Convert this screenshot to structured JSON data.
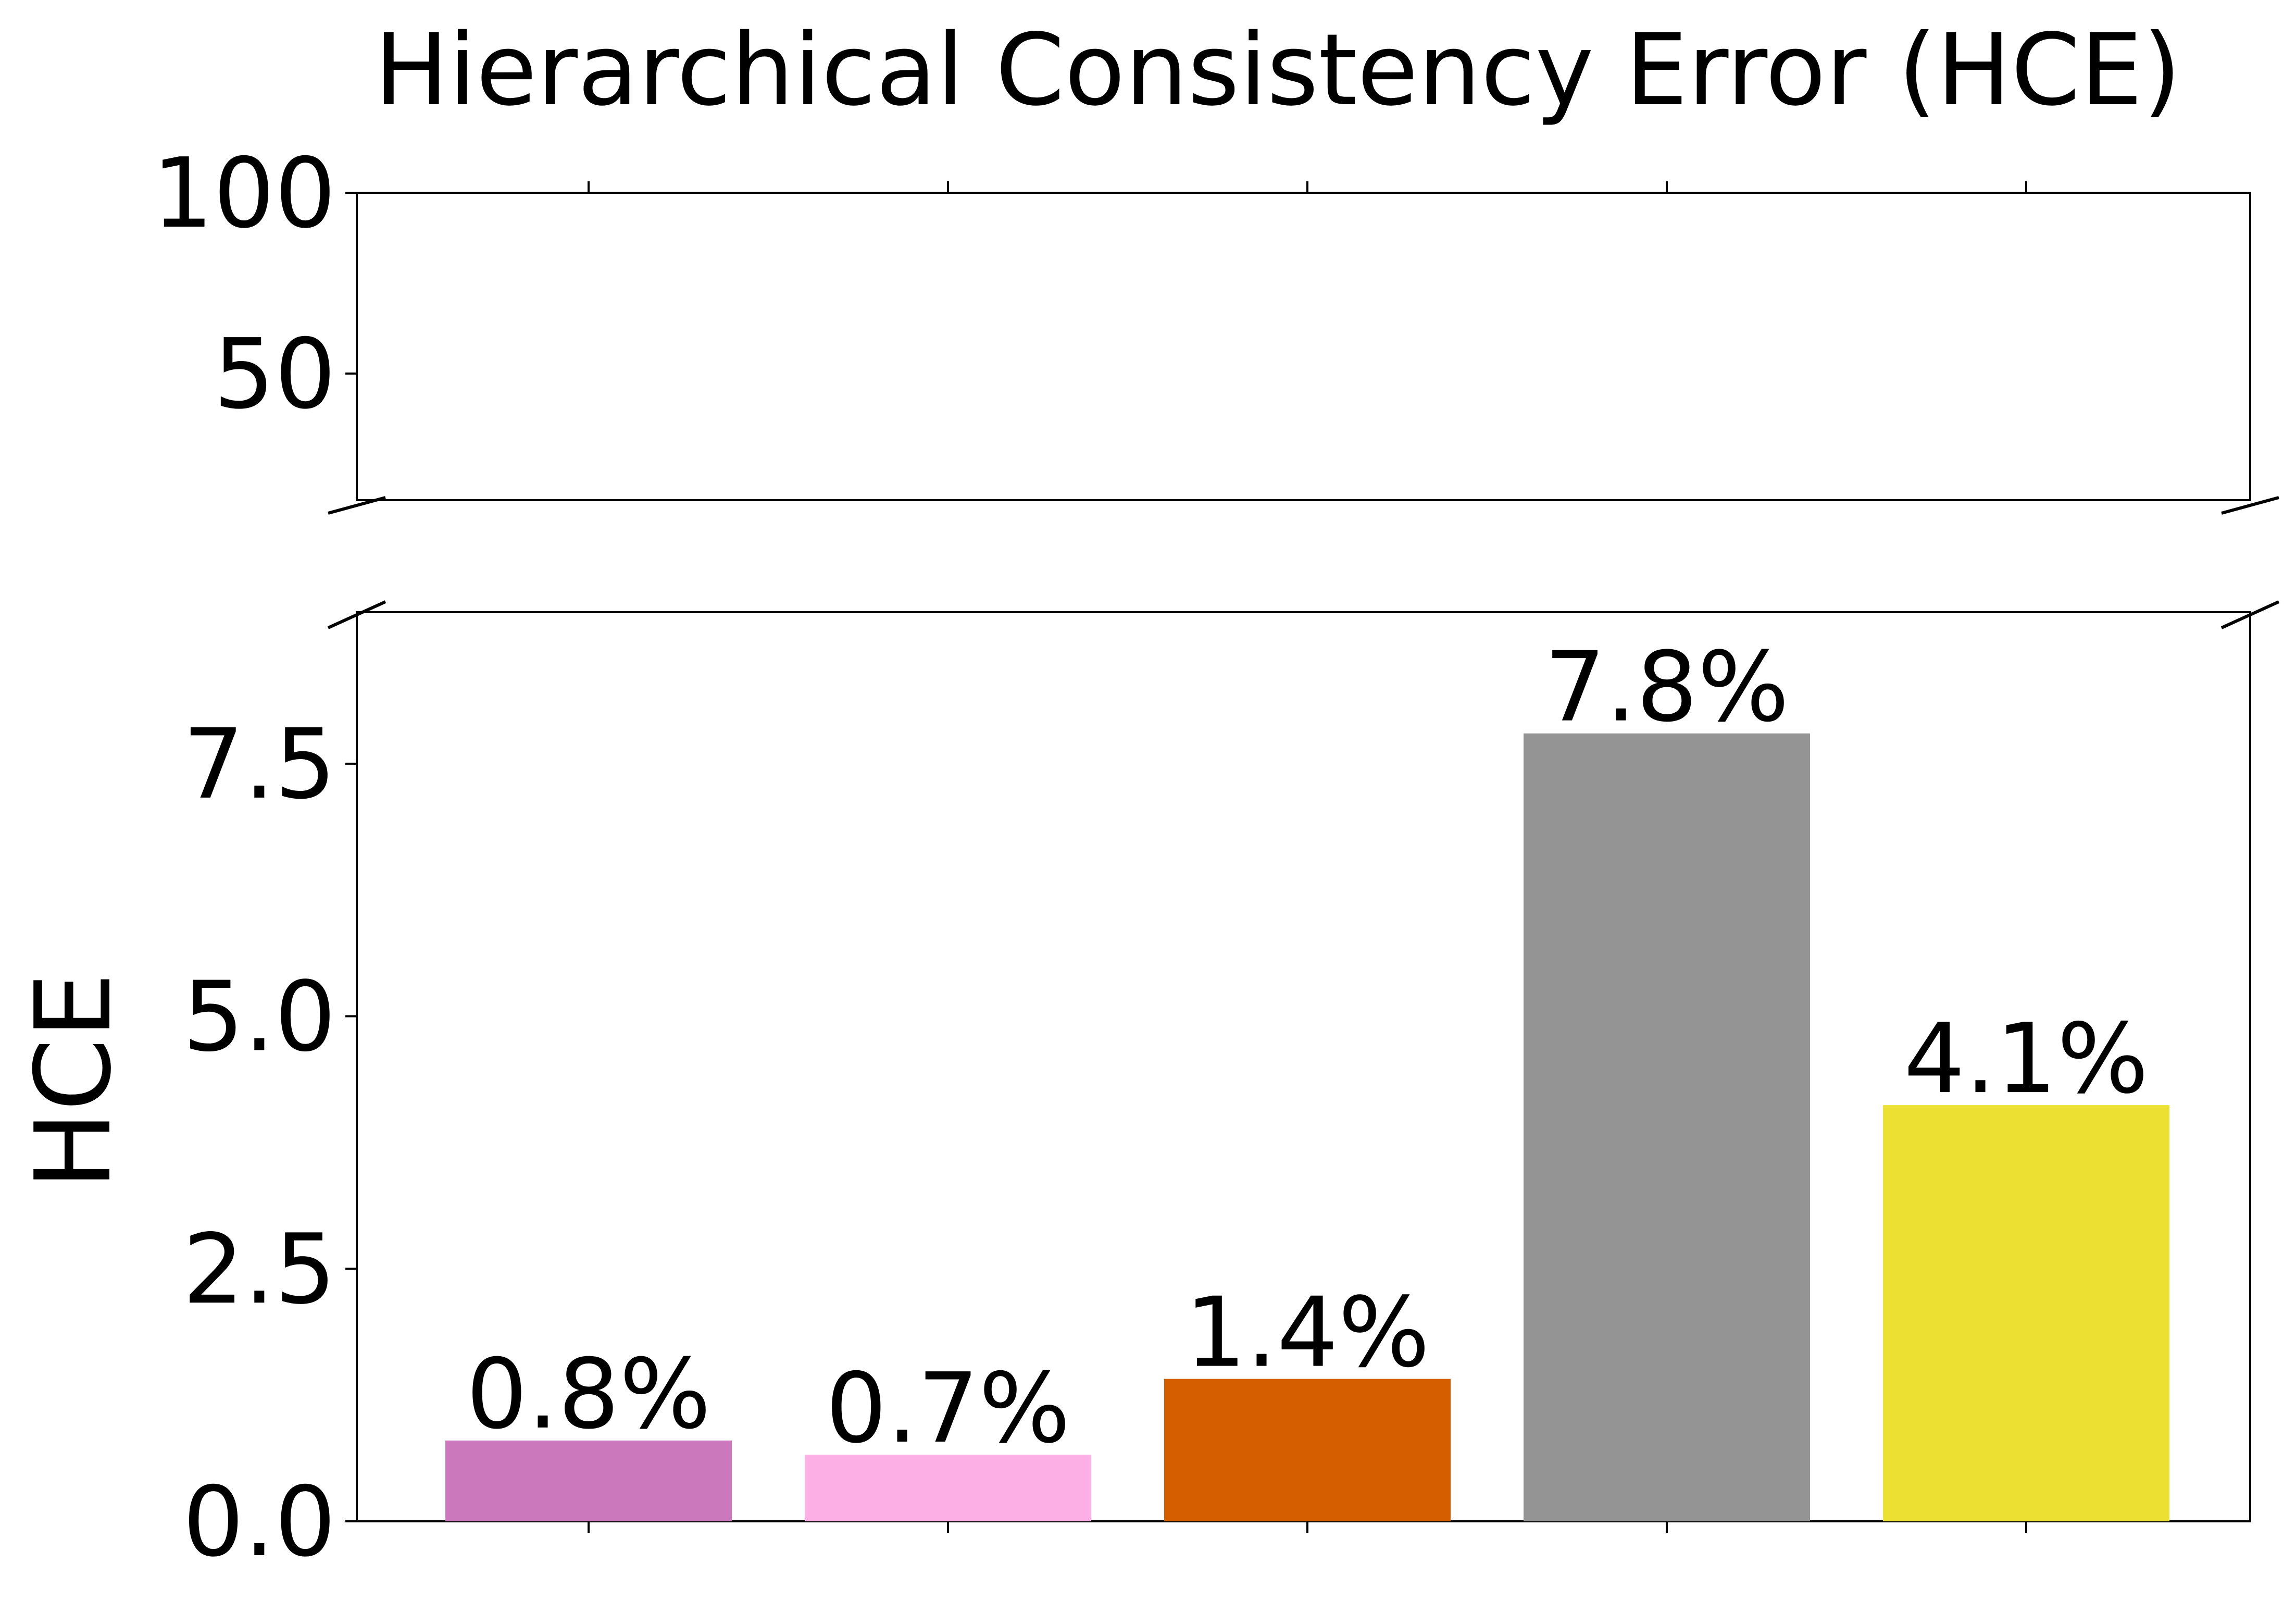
{
  "chart_data": {
    "type": "bar",
    "title": "Hierarchical Consistency Error (HCE)",
    "ylabel": "HCE",
    "xlabel": "",
    "broken_axis": true,
    "upper_ylim": [
      15,
      100
    ],
    "upper_yticks": [
      {
        "value": 50,
        "label": "50"
      },
      {
        "value": 100,
        "label": "100"
      }
    ],
    "lower_ylim": [
      0,
      9
    ],
    "lower_yticks": [
      {
        "value": 0,
        "label": "0.0"
      },
      {
        "value": 2.5,
        "label": "2.5"
      },
      {
        "value": 5.0,
        "label": "5.0"
      },
      {
        "value": 7.5,
        "label": "7.5"
      }
    ],
    "values": [
      0.8,
      0.66,
      1.41,
      7.8,
      4.12
    ],
    "bar_labels": [
      "0.8%",
      "0.7%",
      "1.4%",
      "7.8%",
      "4.1%"
    ],
    "colors": [
      "#cc78bc",
      "#fbafe4",
      "#d55e00",
      "#949494",
      "#ece133"
    ],
    "grid": false,
    "legend": "none"
  }
}
